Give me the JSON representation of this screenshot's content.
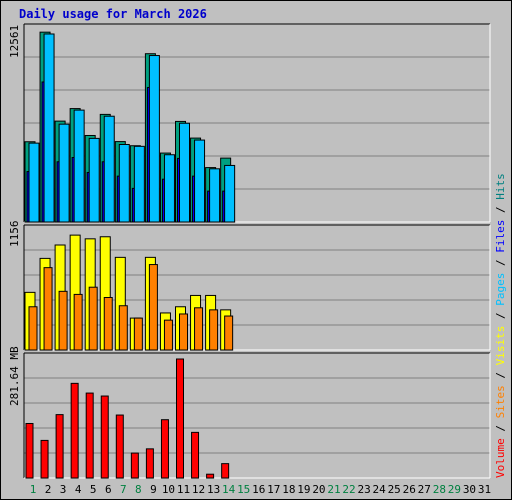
{
  "title": "Daily usage for March 2026",
  "colors": {
    "hits": "#00c0ff",
    "hits_shadow": "#008080",
    "files": "#0000ff",
    "pages": "#00c0ff",
    "visits": "#ffff00",
    "sites": "#ff8000",
    "volume": "#ff0000",
    "weekend_label": "#008040",
    "weekday_label": "#000000",
    "plot_bg": "#c0c0c0",
    "grid": "#808080",
    "title": "#0000cc"
  },
  "legend": [
    {
      "label": "Volume",
      "color": "#ff0000"
    },
    {
      "label": "Sites",
      "color": "#ff8000"
    },
    {
      "label": "Visits",
      "color": "#ffff00"
    },
    {
      "label": "Pages",
      "color": "#00c0ff"
    },
    {
      "label": "Files",
      "color": "#0000ff"
    },
    {
      "label": "Hits",
      "color": "#008080"
    }
  ],
  "chart_data": [
    {
      "type": "bar",
      "panel": "hits",
      "y_max_label": "12561",
      "ylim": [
        0,
        12561
      ],
      "x": [
        1,
        2,
        3,
        4,
        5,
        6,
        7,
        8,
        9,
        10,
        11,
        12,
        13,
        14,
        15,
        16,
        17,
        18,
        19,
        20,
        21,
        22,
        23,
        24,
        25,
        26,
        27,
        28,
        29,
        30,
        31
      ],
      "series": [
        {
          "name": "Hits",
          "values": [
            5250,
            12420,
            6600,
            7420,
            5660,
            7040,
            5260,
            4990,
            11010,
            4510,
            6580,
            5490,
            3560,
            4180,
            0,
            0,
            0,
            0,
            0,
            0,
            0,
            0,
            0,
            0,
            0,
            0,
            0,
            0,
            0,
            0,
            0
          ]
        },
        {
          "name": "Files",
          "values": [
            3300,
            9160,
            3940,
            4220,
            3240,
            3940,
            3000,
            2200,
            8800,
            2800,
            4160,
            3000,
            2020,
            2020,
            0,
            0,
            0,
            0,
            0,
            0,
            0,
            0,
            0,
            0,
            0,
            0,
            0,
            0,
            0,
            0,
            0
          ]
        },
        {
          "name": "Pages",
          "values": [
            5160,
            12300,
            6400,
            7320,
            5470,
            6920,
            5070,
            4950,
            10890,
            4400,
            6460,
            5360,
            3480,
            3700,
            0,
            0,
            0,
            0,
            0,
            0,
            0,
            0,
            0,
            0,
            0,
            0,
            0,
            0,
            0,
            0,
            0
          ]
        }
      ]
    },
    {
      "type": "bar",
      "panel": "visits",
      "y_max_label": "1156",
      "ylim": [
        0,
        1156
      ],
      "x": [
        1,
        2,
        3,
        4,
        5,
        6,
        7,
        8,
        9,
        10,
        11,
        12,
        13,
        14,
        15,
        16,
        17,
        18,
        19,
        20,
        21,
        22,
        23,
        24,
        25,
        26,
        27,
        28,
        29,
        30,
        31
      ],
      "series": [
        {
          "name": "Visits",
          "values": [
            560,
            890,
            1020,
            1116,
            1080,
            1100,
            900,
            310,
            900,
            360,
            420,
            530,
            530,
            390,
            0,
            0,
            0,
            0,
            0,
            0,
            0,
            0,
            0,
            0,
            0,
            0,
            0,
            0,
            0,
            0,
            0
          ]
        },
        {
          "name": "Sites",
          "values": [
            420,
            800,
            570,
            540,
            610,
            510,
            430,
            310,
            830,
            290,
            350,
            410,
            390,
            330,
            0,
            0,
            0,
            0,
            0,
            0,
            0,
            0,
            0,
            0,
            0,
            0,
            0,
            0,
            0,
            0,
            0
          ]
        }
      ]
    },
    {
      "type": "bar",
      "panel": "volume",
      "y_max_label": "281.64 MB",
      "ylim": [
        0,
        281.64
      ],
      "x": [
        1,
        2,
        3,
        4,
        5,
        6,
        7,
        8,
        9,
        10,
        11,
        12,
        13,
        14,
        15,
        16,
        17,
        18,
        19,
        20,
        21,
        22,
        23,
        24,
        25,
        26,
        27,
        28,
        29,
        30,
        31
      ],
      "series": [
        {
          "name": "Volume",
          "values": [
            129,
            89,
            150,
            224,
            201,
            194,
            149,
            59,
            69,
            138,
            281.64,
            108,
            9,
            34,
            0,
            0,
            0,
            0,
            0,
            0,
            0,
            0,
            0,
            0,
            0,
            0,
            0,
            0,
            0,
            0,
            0
          ]
        }
      ]
    }
  ],
  "day_labels": [
    "1",
    "2",
    "3",
    "4",
    "5",
    "6",
    "7",
    "8",
    "9",
    "10",
    "11",
    "12",
    "13",
    "14",
    "15",
    "16",
    "17",
    "18",
    "19",
    "20",
    "21",
    "22",
    "23",
    "24",
    "25",
    "26",
    "27",
    "28",
    "29",
    "30",
    "31"
  ],
  "weekend_days": [
    1,
    7,
    8,
    14,
    15,
    21,
    22,
    28,
    29
  ]
}
